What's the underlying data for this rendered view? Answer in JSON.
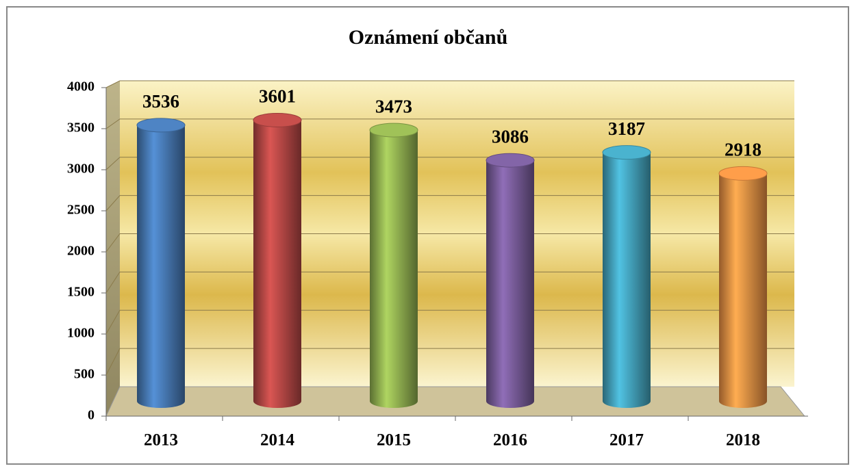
{
  "chart_data": {
    "type": "bar",
    "title": "Oznámení občanů",
    "categories": [
      "2013",
      "2014",
      "2015",
      "2016",
      "2017",
      "2018"
    ],
    "values": [
      3536,
      3601,
      3473,
      3086,
      3187,
      2918
    ],
    "colors": [
      "#4a7ebb",
      "#be4b48",
      "#98b954",
      "#7d60a0",
      "#46aac5",
      "#f79646"
    ],
    "ylim": [
      0,
      4000
    ],
    "yticks": [
      0,
      500,
      1000,
      1500,
      2000,
      2500,
      3000,
      3500,
      4000
    ],
    "grid": true
  }
}
